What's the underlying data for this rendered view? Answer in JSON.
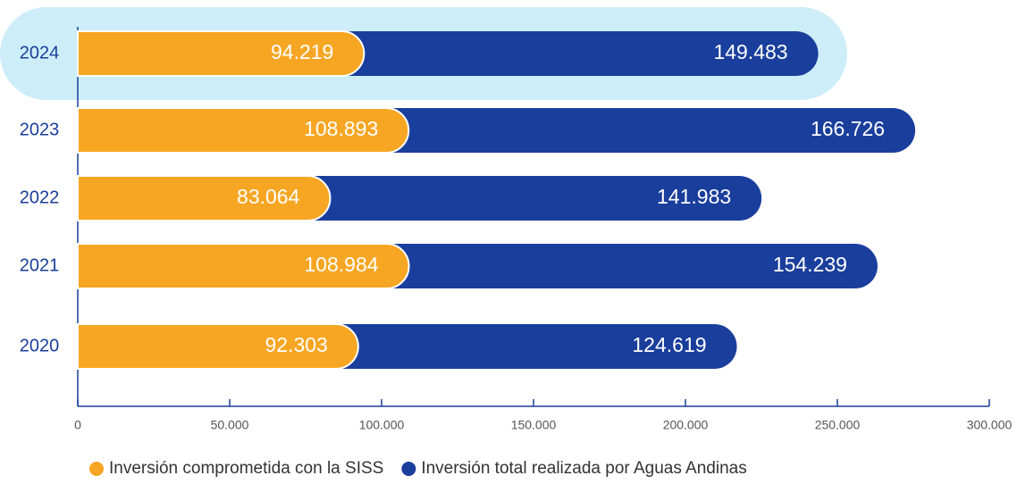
{
  "chart_data": {
    "type": "stacked_bar_horizontal",
    "categories": [
      "2024",
      "2023",
      "2022",
      "2021",
      "2020"
    ],
    "series": [
      {
        "name": "Inversión comprometida con la SISS",
        "color": "#f7a623",
        "values": [
          94219,
          108893,
          83064,
          108984,
          92303
        ],
        "value_labels": [
          "94.219",
          "108.893",
          "83.064",
          "108.984",
          "92.303"
        ]
      },
      {
        "name": "Inversión total realizada por Aguas Andinas",
        "color": "#1a3e9c",
        "values": [
          149483,
          166726,
          141983,
          154239,
          124619
        ],
        "value_labels": [
          "149.483",
          "166.726",
          "141.983",
          "154.239",
          "124.619"
        ]
      }
    ],
    "xlim": [
      0,
      300000
    ],
    "xticks": [
      0,
      {
        "value": 50000,
        "label": "50.000"
      },
      {
        "value": 100000,
        "label": "100.000"
      },
      {
        "value": 150000,
        "label": "150.000"
      },
      {
        "value": 200000,
        "label": "200.000"
      },
      {
        "value": 250000,
        "label": "250.000"
      },
      {
        "value": 300000,
        "label": "300.000"
      }
    ],
    "legend": "bottom"
  }
}
